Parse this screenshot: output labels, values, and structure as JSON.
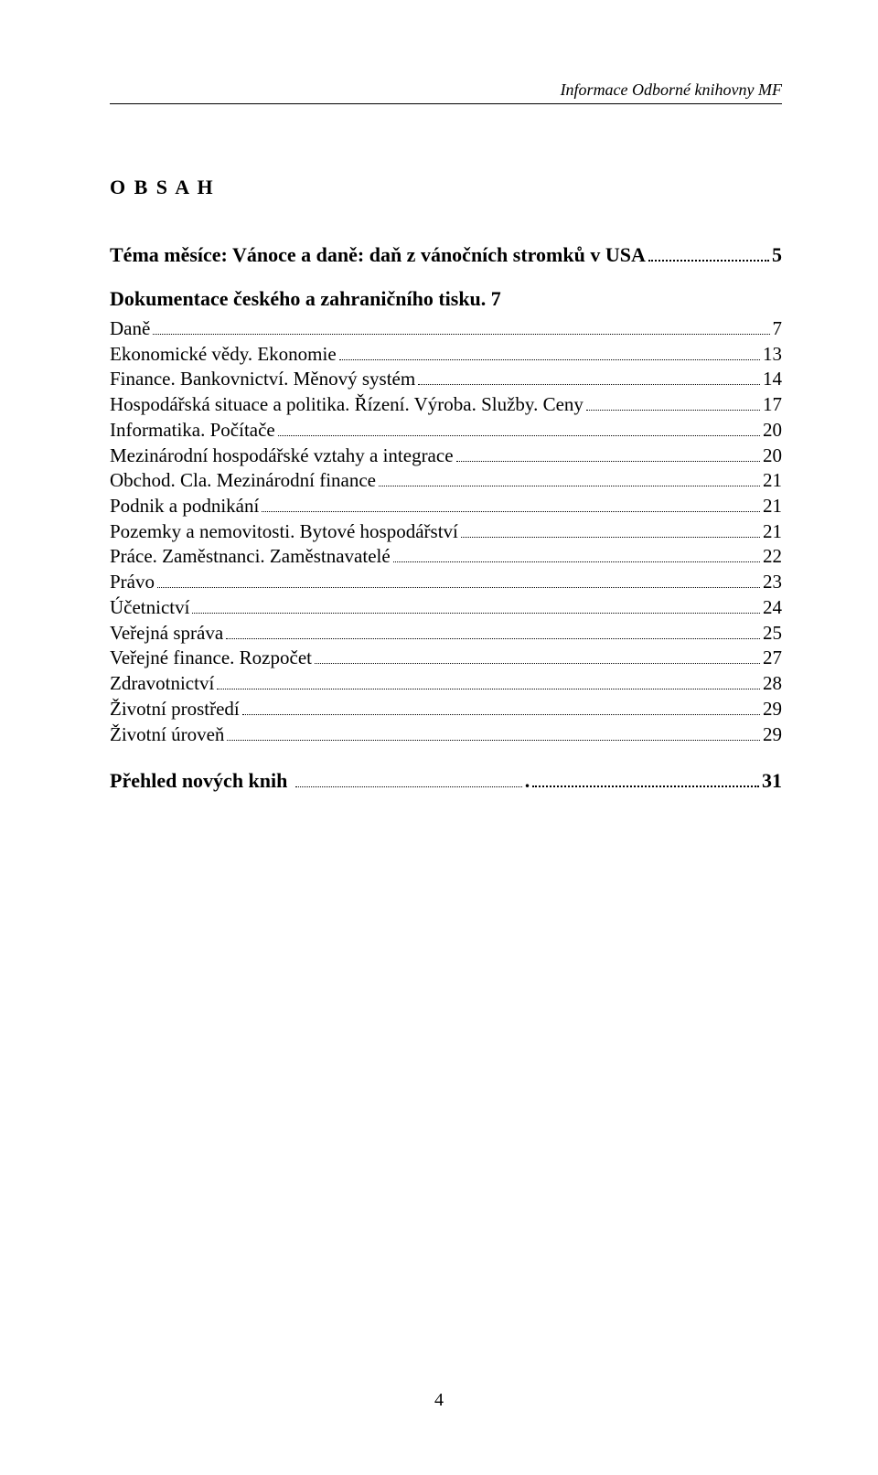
{
  "header": {
    "running_title": "Informace Odborné knihovny MF"
  },
  "title_spaced": "O B S A H",
  "theme": {
    "prefix": "Téma měsíce: ",
    "text": "Vánoce a daně: daň z vánočních stromků v USA",
    "page": "5"
  },
  "doc_section": {
    "label": "Dokumentace českého a zahraničního tisku",
    "page": "7"
  },
  "entries": [
    {
      "label": "Daně",
      "page": "7"
    },
    {
      "label": "Ekonomické vědy. Ekonomie",
      "page": "13"
    },
    {
      "label": "Finance. Bankovnictví. Měnový systém",
      "page": "14"
    },
    {
      "label": "Hospodářská situace a politika. Řízení. Výroba. Služby. Ceny",
      "page": "17"
    },
    {
      "label": "Informatika. Počítače",
      "page": "20"
    },
    {
      "label": "Mezinárodní hospodářské vztahy a integrace",
      "page": "20"
    },
    {
      "label": "Obchod. Cla. Mezinárodní finance",
      "page": "21"
    },
    {
      "label": "Podnik a podnikání",
      "page": "21"
    },
    {
      "label": "Pozemky a nemovitosti. Bytové hospodářství",
      "page": "21"
    },
    {
      "label": "Práce. Zaměstnanci. Zaměstnavatelé",
      "page": "22"
    },
    {
      "label": "Právo",
      "page": "23"
    },
    {
      "label": "Účetnictví",
      "page": "24"
    },
    {
      "label": "Veřejná správa",
      "page": "25"
    },
    {
      "label": "Veřejné finance. Rozpočet",
      "page": "27"
    },
    {
      "label": "Zdravotnictví",
      "page": "28"
    },
    {
      "label": "Životní prostředí",
      "page": "29"
    },
    {
      "label": "Životní úroveň",
      "page": "29"
    }
  ],
  "appendix": {
    "label": "Přehled nových knih",
    "page": "31"
  },
  "footer": {
    "page_number": "4"
  }
}
